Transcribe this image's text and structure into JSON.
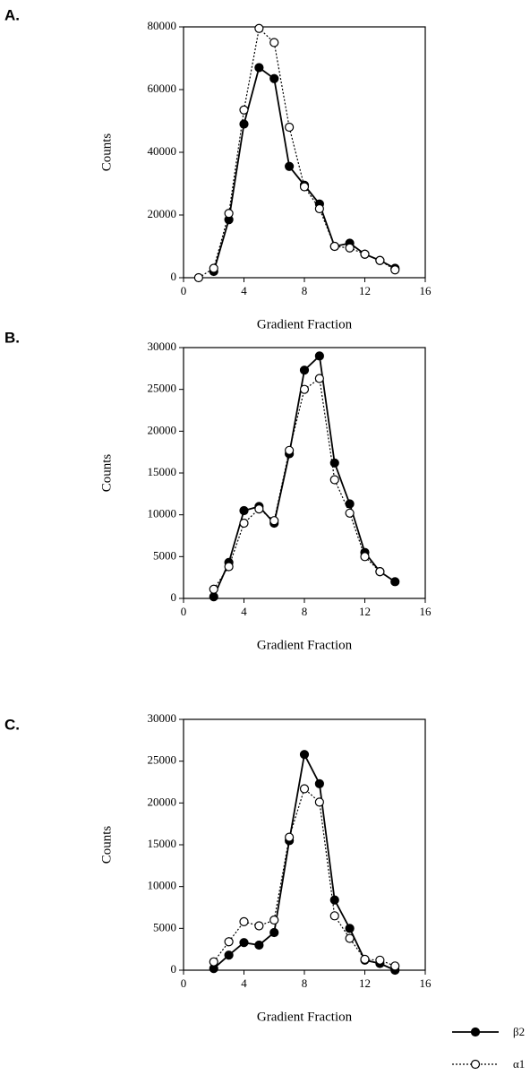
{
  "chart_data": [
    {
      "type": "line",
      "label": "A.",
      "xlabel": "Gradient Fraction",
      "ylabel": "Counts",
      "x": [
        1,
        2,
        3,
        4,
        5,
        6,
        7,
        8,
        9,
        10,
        11,
        12,
        13,
        14
      ],
      "xlim": [
        0,
        16
      ],
      "xticks": [
        0,
        4,
        8,
        12,
        16
      ],
      "ylim": [
        0,
        80000
      ],
      "yticks": [
        0,
        20000,
        40000,
        60000,
        80000
      ],
      "series": [
        {
          "name": "β2",
          "color": "#000000",
          "marker": "filled",
          "line_style": "solid",
          "values": [
            null,
            2000,
            18500,
            49000,
            67000,
            63500,
            35500,
            29500,
            23500,
            10000,
            11000,
            7500,
            5500,
            3000
          ]
        },
        {
          "name": "α1",
          "color": "#000000",
          "marker": "open",
          "line_style": "dotted",
          "values": [
            0,
            3000,
            20500,
            53500,
            79500,
            75000,
            48000,
            29000,
            22000,
            10000,
            9500,
            7500,
            5500,
            2500
          ]
        }
      ]
    },
    {
      "type": "line",
      "label": "B.",
      "xlabel": "Gradient Fraction",
      "ylabel": "Counts",
      "x": [
        2,
        3,
        4,
        5,
        6,
        7,
        8,
        9,
        10,
        11,
        12,
        13,
        14
      ],
      "xlim": [
        0,
        16
      ],
      "xticks": [
        0,
        4,
        8,
        12,
        16
      ],
      "ylim": [
        0,
        30000
      ],
      "yticks": [
        0,
        5000,
        10000,
        15000,
        20000,
        25000,
        30000
      ],
      "series": [
        {
          "name": "β2",
          "color": "#000000",
          "marker": "filled",
          "line_style": "solid",
          "values": [
            200,
            4300,
            10500,
            11000,
            9000,
            17300,
            27300,
            29000,
            16200,
            11300,
            5500,
            3200,
            2000
          ]
        },
        {
          "name": "α1",
          "color": "#000000",
          "marker": "open",
          "line_style": "dotted",
          "values": [
            1100,
            3800,
            9000,
            10700,
            9300,
            17700,
            25000,
            26300,
            14200,
            10200,
            5000,
            3200,
            null
          ]
        }
      ]
    },
    {
      "type": "line",
      "label": "C.",
      "xlabel": "Gradient Fraction",
      "ylabel": "Counts",
      "x": [
        2,
        3,
        4,
        5,
        6,
        7,
        8,
        9,
        10,
        11,
        12,
        13,
        14
      ],
      "xlim": [
        0,
        16
      ],
      "xticks": [
        0,
        4,
        8,
        12,
        16
      ],
      "ylim": [
        0,
        30000
      ],
      "yticks": [
        0,
        5000,
        10000,
        15000,
        20000,
        25000,
        30000
      ],
      "legend": "bottom-right",
      "series": [
        {
          "name": "β2",
          "color": "#000000",
          "marker": "filled",
          "line_style": "solid",
          "values": [
            200,
            1800,
            3300,
            3000,
            4500,
            15500,
            25800,
            22300,
            8400,
            5000,
            1200,
            800,
            0
          ]
        },
        {
          "name": "α1",
          "color": "#000000",
          "marker": "open",
          "line_style": "dotted",
          "values": [
            1000,
            3400,
            5800,
            5300,
            6000,
            15900,
            21700,
            20100,
            6500,
            3800,
            1300,
            1200,
            500
          ]
        }
      ]
    }
  ]
}
